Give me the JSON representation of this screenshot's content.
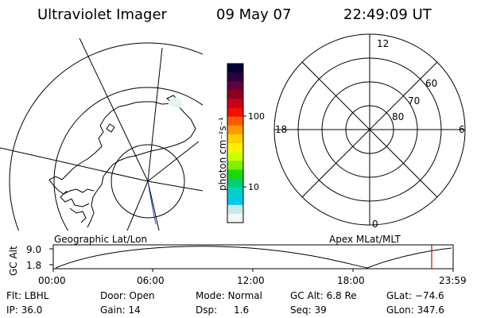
{
  "header": {
    "instrument": "Ultraviolet Imager",
    "date": "09 May 07",
    "time": "22:49:09 UT"
  },
  "colorbar": {
    "unit_label": "photon cm⁻²s⁻¹",
    "ticks": [
      "100",
      "10"
    ],
    "colors": [
      "#000033",
      "#2b0040",
      "#600040",
      "#8e0020",
      "#c80018",
      "#f01000",
      "#ff5a00",
      "#ff9a00",
      "#ffd000",
      "#fff000",
      "#d0ff00",
      "#80f000",
      "#20d800",
      "#00d070",
      "#00d0c0",
      "#00c8e8",
      "#c8e8ec",
      "#f2f6f6"
    ]
  },
  "left_map": {
    "label": "Geographic Lat/Lon"
  },
  "right_map": {
    "label": "Apex MLat/MLT",
    "mlt_labels": {
      "top": "12",
      "left": "18",
      "right": "6",
      "bottom": "0"
    },
    "lat_labels": [
      "60",
      "70",
      "80"
    ]
  },
  "altitude_plot": {
    "axis_label": "GC Alt",
    "y_ticks": [
      "9.0",
      "1.8"
    ],
    "x_ticks": [
      "00:00",
      "06:00",
      "12:00",
      "18:00",
      "23:59"
    ],
    "marker_color": "#e00000"
  },
  "status": {
    "filter": "Flt: LBHL",
    "door": "Door: Open",
    "mode": "Mode: Normal",
    "gc_alt": "GC Alt: 6.8 Re",
    "glat": "GLat: −74.6",
    "ip": "IP: 36.0",
    "gain": "Gain: 14",
    "dsp_label": "Dsp:",
    "dsp_value": "1.6",
    "seq": "Seq: 39",
    "glon": "GLon: 347.6"
  }
}
